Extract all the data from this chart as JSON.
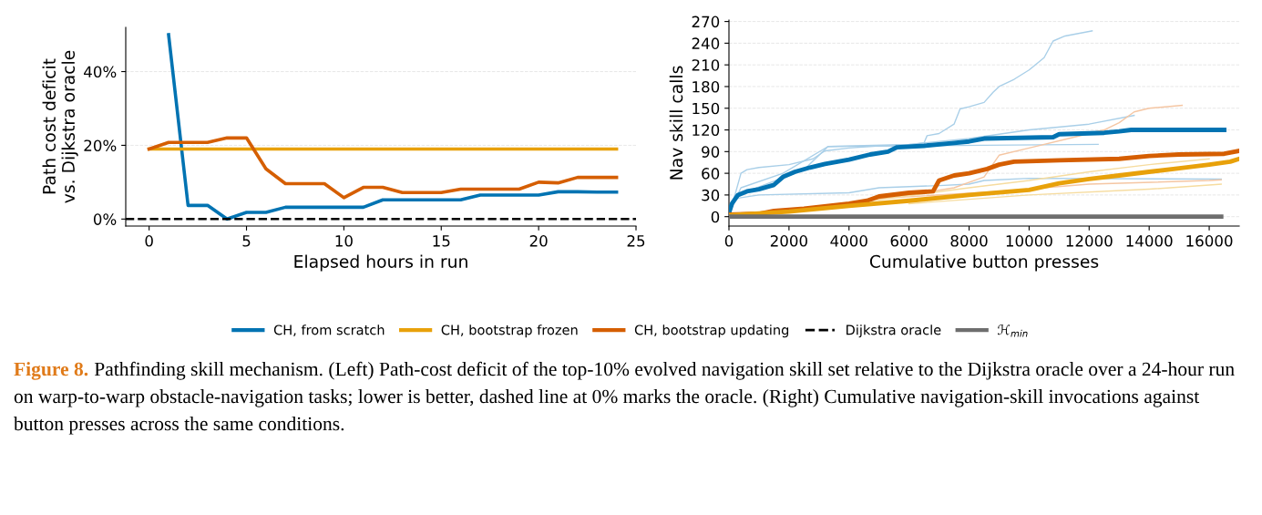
{
  "chart_data": [
    {
      "type": "line",
      "xlabel": "Elapsed hours in run",
      "ylabel": "Path cost deficit\nvs. Dijkstra oracle",
      "xlim": [
        -1.2,
        25
      ],
      "xticks": [
        0,
        5,
        10,
        15,
        20,
        25
      ],
      "ylim": [
        -1.9,
        52
      ],
      "yticks": [
        {
          "value": 0,
          "label": "0%"
        },
        {
          "value": 20,
          "label": "20%"
        },
        {
          "value": 40,
          "label": "40%"
        }
      ],
      "grid": "y",
      "legend": "bottom",
      "series": [
        {
          "name": "CH, from scratch",
          "color": "#0173b2",
          "x": [
            1,
            2,
            3,
            4,
            5,
            6,
            7,
            8,
            9,
            10,
            11,
            12,
            13,
            14,
            15,
            16,
            17,
            18,
            19,
            20,
            21,
            22,
            23,
            24
          ],
          "values": [
            50,
            3.7,
            3.7,
            0,
            1.8,
            1.8,
            3.2,
            3.2,
            3.2,
            3.2,
            3.2,
            5.2,
            5.2,
            5.2,
            5.2,
            5.2,
            6.5,
            6.5,
            6.5,
            6.5,
            7.4,
            7.4,
            7.3,
            7.3
          ]
        },
        {
          "name": "CH, bootstrap frozen",
          "color": "#e8a10a",
          "x": [
            0,
            24
          ],
          "values": [
            19,
            19
          ]
        },
        {
          "name": "CH, bootstrap updating",
          "color": "#d55e00",
          "x": [
            0,
            1,
            2,
            3,
            4,
            5,
            6,
            7,
            8,
            9,
            10,
            11,
            12,
            13,
            14,
            15,
            16,
            17,
            18,
            19,
            20,
            21,
            22,
            23,
            24
          ],
          "values": [
            19,
            20.8,
            20.8,
            20.8,
            22,
            22,
            13.6,
            9.6,
            9.6,
            9.6,
            5.8,
            8.6,
            8.6,
            7.2,
            7.2,
            7.2,
            8.1,
            8.1,
            8.1,
            8.1,
            10,
            9.8,
            11.3,
            11.3,
            11.3
          ]
        }
      ],
      "ref_lines": [
        {
          "axis": "y",
          "value": 0,
          "label": "Dijkstra oracle",
          "color": "#000000",
          "line_style": "dashed"
        }
      ],
      "annotations": [
        "Figure 8.",
        "Pathfinding skill mechanism. (Left) Path-cost deficit of the top-10% evolved navigation skill set relative to the Dijkstra oracle over a 24-hour run on warp-to-warp obstacle-navigation tasks; lower is better, dashed line at 0% marks the oracle. (Right) Cumulative navigation-skill invocations against button presses across the same conditions."
      ]
    },
    {
      "type": "line",
      "xlabel": "Cumulative button presses",
      "ylabel": "Nav skill calls",
      "xlim": [
        0,
        17000
      ],
      "xticks": [
        0,
        2000,
        4000,
        6000,
        8000,
        10000,
        12000,
        14000,
        16000
      ],
      "ylim": [
        -13,
        272
      ],
      "yticks": [
        0,
        30,
        60,
        90,
        120,
        150,
        180,
        210,
        240,
        270
      ],
      "grid": "y",
      "legend": "bottom",
      "series": [
        {
          "color": "#a9cfe8",
          "x": [
            0,
            200,
            400,
            600,
            1000,
            2000,
            2800,
            3200,
            4000,
            5000,
            6000,
            6500,
            6600,
            7000,
            7500,
            7700,
            8000,
            8500,
            8800,
            9000,
            9500,
            10000,
            10500,
            10800,
            11200,
            12100
          ],
          "values": [
            5,
            30,
            60,
            65,
            68,
            72,
            80,
            91,
            95,
            98,
            99,
            102,
            112,
            115,
            128,
            149,
            152,
            158,
            172,
            180,
            190,
            203,
            220,
            243,
            250,
            257
          ]
        },
        {
          "color": "#a9cfe8",
          "x": [
            0,
            300,
            2500,
            3300,
            6000,
            8000,
            10000,
            12000,
            13500
          ],
          "values": [
            5,
            30,
            65,
            97,
            100,
            108,
            120,
            128,
            140
          ]
        },
        {
          "color": "#a9cfe8",
          "x": [
            0,
            400,
            1800,
            3300,
            12300
          ],
          "values": [
            5,
            40,
            60,
            97,
            100
          ]
        },
        {
          "color": "#a9cfe8",
          "x": [
            0,
            200,
            1000,
            4000,
            5000,
            7000,
            8000,
            8500,
            10000,
            16400
          ],
          "values": [
            5,
            25,
            30,
            33,
            40,
            43,
            45,
            50,
            53,
            52
          ]
        },
        {
          "color": "#f5c6a3",
          "x": [
            4000,
            6000,
            7500,
            8500,
            9000,
            10000,
            11500,
            12500,
            13000,
            13500,
            14000,
            15100
          ],
          "values": [
            18,
            30,
            40,
            55,
            85,
            95,
            110,
            120,
            130,
            145,
            150,
            154
          ]
        },
        {
          "color": "#f5c6a3",
          "x": [
            5000,
            9000,
            12000,
            16000,
            16400
          ],
          "values": [
            25,
            35,
            45,
            50,
            51
          ]
        },
        {
          "color": "#f6dc9f",
          "x": [
            6000,
            10000,
            14000,
            16400
          ],
          "values": [
            18,
            30,
            38,
            45
          ]
        },
        {
          "color": "#f6dc9f",
          "x": [
            4000,
            8000,
            10000,
            12000,
            14000,
            16000
          ],
          "values": [
            18,
            40,
            50,
            62,
            72,
            80
          ]
        },
        {
          "color": "#0173b2",
          "x": [
            0,
            100,
            300,
            600,
            1000,
            1500,
            1800,
            2200,
            2700,
            3200,
            4000,
            4700,
            5300,
            5600,
            6500,
            7500,
            8000,
            8500,
            10800,
            11000,
            12500,
            13000,
            13400,
            16500
          ],
          "values": [
            5,
            18,
            30,
            35,
            38,
            44,
            55,
            62,
            68,
            73,
            79,
            86,
            90,
            96,
            98,
            102,
            104,
            108,
            110,
            114,
            116,
            118,
            120,
            120
          ]
        },
        {
          "color": "#d55e00",
          "x": [
            0,
            1000,
            1500,
            2500,
            4000,
            4600,
            5000,
            6000,
            6800,
            7000,
            7500,
            8000,
            8600,
            9000,
            9500,
            11000,
            13000,
            14000,
            15000,
            16500,
            17000
          ],
          "values": [
            3,
            4,
            8,
            11,
            18,
            22,
            28,
            33,
            35,
            50,
            57,
            60,
            66,
            72,
            76,
            78,
            80,
            84,
            86,
            87,
            91
          ]
        },
        {
          "color": "#e8a10a",
          "x": [
            0,
            2000,
            4000,
            6000,
            8000,
            10000,
            11000,
            12000,
            13000,
            14000,
            15000,
            16000,
            16700,
            17000
          ],
          "values": [
            2,
            7,
            15,
            22,
            30,
            37,
            46,
            52,
            57,
            62,
            67,
            72,
            76,
            80
          ]
        },
        {
          "name": "ℋ$_{min}$",
          "color": "#6e6e6e",
          "x": [
            0,
            16400
          ],
          "values": [
            0,
            0
          ]
        }
      ]
    }
  ]
}
